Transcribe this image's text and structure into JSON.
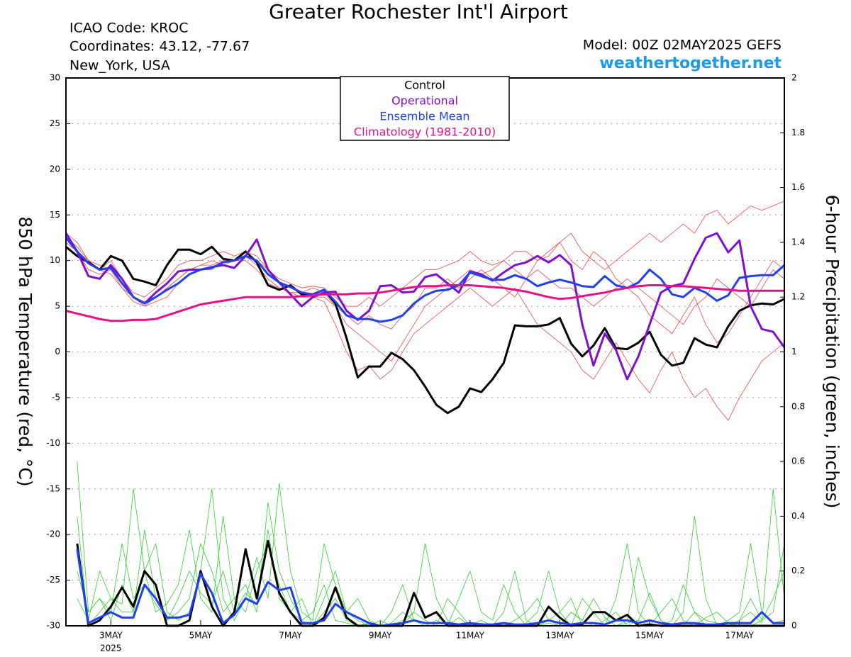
{
  "chart_data": {
    "type": "line",
    "title": "Greater Rochester Int'l Airport",
    "icao": "ICAO Code: KROC",
    "coordinates": "Coordinates: 43.12, -77.67",
    "location": "New_York, USA",
    "model": "Model: 00Z 02MAY2025 GEFS",
    "site": "weathertogether.net",
    "y_label": "850 hPa Temperature (red, °C)",
    "y2_label": "6-hour Precipitation (green, inches)",
    "year": "2025",
    "grid": true,
    "legend": "top",
    "xlim": [
      0,
      384
    ],
    "xticks": [
      {
        "value": 24,
        "label": "3MAY"
      },
      {
        "value": 72,
        "label": "5MAY"
      },
      {
        "value": 120,
        "label": "7MAY"
      },
      {
        "value": 168,
        "label": "9MAY"
      },
      {
        "value": 216,
        "label": "11MAY"
      },
      {
        "value": 264,
        "label": "13MAY"
      },
      {
        "value": 312,
        "label": "15MAY"
      },
      {
        "value": 360,
        "label": "17MAY"
      }
    ],
    "ylim": [
      -30,
      30
    ],
    "yticks": [
      -30,
      -25,
      -20,
      -15,
      -10,
      -5,
      0,
      5,
      10,
      15,
      20,
      25,
      30
    ],
    "y2lim": [
      0,
      2
    ],
    "y2ticks": [
      0,
      0.2,
      0.4,
      0.6,
      0.8,
      1,
      1.2,
      1.4,
      1.6,
      1.8,
      2
    ],
    "x": [
      0,
      6,
      12,
      18,
      24,
      30,
      36,
      42,
      48,
      54,
      60,
      66,
      72,
      78,
      84,
      90,
      96,
      102,
      108,
      114,
      120,
      126,
      132,
      138,
      144,
      150,
      156,
      162,
      168,
      174,
      180,
      186,
      192,
      198,
      204,
      210,
      216,
      222,
      228,
      234,
      240,
      246,
      252,
      258,
      264,
      270,
      276,
      282,
      288,
      294,
      300,
      306,
      312,
      318,
      324,
      330,
      336,
      342,
      348,
      354,
      360,
      366,
      372,
      378,
      384
    ],
    "member_color": "#f04848",
    "precip_member_color": "#30d030",
    "temperature_members": [
      [
        12.5,
        11.5,
        10,
        9,
        10,
        8,
        6.5,
        6,
        7,
        8,
        9.5,
        10,
        10,
        10.5,
        11,
        10.5,
        11,
        10,
        9,
        8,
        7.5,
        7,
        7.2,
        7,
        6,
        5,
        5,
        6,
        5,
        6,
        7,
        8,
        9,
        9,
        9.5,
        10,
        11,
        10,
        9.5,
        10,
        11,
        11,
        10,
        10.5,
        12,
        13,
        11,
        10,
        9,
        10,
        11,
        12,
        13,
        12,
        13,
        14,
        13,
        15,
        15.5,
        14,
        15,
        16,
        15.5,
        16,
        16.5
      ],
      [
        12,
        11,
        9,
        8.5,
        9,
        7,
        5.5,
        5,
        5.5,
        6,
        7.5,
        8.5,
        9,
        9,
        10,
        10,
        10.5,
        9.5,
        8,
        7,
        6.5,
        6,
        6,
        5.5,
        3,
        0,
        -2,
        -1.5,
        -3,
        -2,
        0,
        2,
        3,
        4,
        5,
        6,
        7,
        6,
        5,
        6,
        7,
        5,
        3,
        2,
        1,
        0,
        -2,
        -3,
        -1,
        1,
        -1,
        -3,
        -4.5,
        -2,
        0,
        -3,
        -5,
        -4,
        -6,
        -7.5,
        -5,
        -3,
        -1,
        0,
        1
      ],
      [
        13,
        12,
        10,
        9.5,
        9,
        8,
        6,
        5,
        6,
        7,
        8,
        9,
        9.5,
        9.5,
        10,
        10,
        10,
        9,
        7.5,
        7,
        6.5,
        6.5,
        7,
        6.5,
        5,
        4,
        3,
        4,
        3,
        2.5,
        4,
        5,
        7,
        7,
        8,
        7,
        8,
        9,
        8,
        7,
        6,
        8,
        9,
        8,
        7,
        7,
        6,
        5,
        6,
        7,
        8,
        7,
        6,
        5,
        4,
        3,
        5,
        6,
        8,
        7,
        6,
        5,
        7,
        9,
        8
      ],
      [
        12,
        11,
        10,
        9,
        8.5,
        7,
        6,
        5.5,
        6,
        7,
        8,
        9,
        9.5,
        10,
        9.5,
        10,
        11,
        10.5,
        9,
        7.5,
        7,
        6.5,
        6,
        6,
        5,
        3,
        2,
        1,
        0,
        -1,
        1,
        3,
        5,
        6,
        7,
        8,
        9,
        8.5,
        9,
        10,
        9,
        8,
        10,
        11,
        12,
        10,
        9,
        11,
        10,
        8,
        7,
        6,
        4,
        3,
        2,
        4,
        6,
        3,
        1,
        2,
        4,
        6,
        8,
        10,
        9
      ]
    ],
    "precip_members": [
      [
        null,
        0.6,
        0.05,
        0.1,
        0.02,
        0.15,
        0.05,
        0.35,
        0.1,
        0.02,
        0.05,
        0.1,
        0.3,
        0.2,
        0.05,
        0.1,
        0.15,
        0.05,
        0.45,
        0.2,
        0.1,
        0.02,
        0,
        0.05,
        0.1,
        0.02,
        0,
        0.01,
        0,
        0,
        0.02,
        0.05,
        0.3,
        0.1,
        0.02,
        0,
        0,
        0.02,
        0,
        0,
        0.02,
        0.05,
        0.1,
        0.02,
        0,
        0.05,
        0.02,
        0,
        0,
        0.1,
        0.3,
        0.05,
        0,
        0,
        0.02,
        0.15,
        0.05,
        0,
        0,
        0.02,
        0.05,
        0.3,
        0.05,
        0.01,
        0.02
      ],
      [
        null,
        0.4,
        0,
        0.05,
        0.1,
        0.08,
        0.5,
        0.2,
        0.05,
        0.08,
        0.15,
        0.35,
        0.1,
        0.05,
        0.4,
        0.1,
        0.05,
        0.2,
        0.3,
        0.15,
        0.05,
        0.1,
        0,
        0.1,
        0.2,
        0.05,
        0.02,
        0,
        0,
        0.05,
        0.15,
        0.02,
        0,
        0,
        0.1,
        0.05,
        0,
        0.02,
        0,
        0,
        0,
        0.01,
        0.05,
        0.2,
        0.05,
        0,
        0.1,
        0.05,
        0,
        0,
        0.02,
        0.25,
        0.1,
        0.02,
        0,
        0.05,
        0.4,
        0.1,
        0,
        0,
        0.02,
        0.05,
        0.01,
        0.5,
        0.1
      ],
      [
        null,
        0.1,
        0.02,
        0.2,
        0.1,
        0.05,
        0.05,
        0.2,
        0.3,
        0.05,
        0.02,
        0.05,
        0.2,
        0.5,
        0.1,
        0.02,
        0.1,
        0.25,
        0.1,
        0.52,
        0.2,
        0.05,
        0.02,
        0.3,
        0.15,
        0.05,
        0.1,
        0.02,
        0,
        0.01,
        0.05,
        0.02,
        0,
        0.02,
        0,
        0.1,
        0.2,
        0.05,
        0.02,
        0.15,
        0.05,
        0,
        0,
        0.02,
        0.05,
        0.1,
        0,
        0,
        0.02,
        0.05,
        0,
        0.02,
        0,
        0.05,
        0.1,
        0.02,
        0,
        0.03,
        0.05,
        0.01,
        0,
        0,
        0.02,
        0.1,
        0.2
      ],
      [
        null,
        0.2,
        0.05,
        0.1,
        0.05,
        0.3,
        0.1,
        0.15,
        0.08,
        0.02,
        0.1,
        0.2,
        0.12,
        0.08,
        0.2,
        0.05,
        0.12,
        0.08,
        0.35,
        0.1,
        0.05,
        0.02,
        0.05,
        0.15,
        0.02,
        0.01,
        0,
        0,
        0.02,
        0,
        0,
        0.05,
        0.02,
        0,
        0,
        0.03,
        0,
        0.01,
        0,
        0.05,
        0.2,
        0.02,
        0,
        0.01,
        0,
        0.05,
        0.02,
        0.1,
        0.03,
        0,
        0.01,
        0.02,
        0.12,
        0.02,
        0,
        0,
        0.05,
        0.02,
        0.01,
        0,
        0.02,
        0.1,
        0.02,
        0.05,
        0.3
      ]
    ],
    "series": [
      {
        "name": "Control",
        "color": "#000000",
        "values": [
          11.5,
          10.5,
          9.8,
          9,
          10.5,
          10,
          8,
          7.7,
          7.3,
          9.5,
          11.2,
          11.2,
          10.7,
          11.5,
          10.2,
          10,
          11,
          9.8,
          7.3,
          6.8,
          7.3,
          6.3,
          6.3,
          6.8,
          5.3,
          1.5,
          -2.8,
          -1.6,
          -1.6,
          -0.1,
          -0.8,
          -2,
          -3.8,
          -5.8,
          -6.7,
          -6,
          -4,
          -4.4,
          -3,
          -1.2,
          2.9,
          2.8,
          2.8,
          3,
          3.7,
          0.9,
          -0.5,
          0.7,
          2.6,
          0.4,
          0.3,
          1,
          2.2,
          -0.3,
          -1.5,
          -1.2,
          1.5,
          0.8,
          0.5,
          2.8,
          4.5,
          5.1,
          5.3,
          5.2,
          5.8
        ]
      },
      {
        "name": "Operational",
        "color": "#8010d0",
        "values": [
          13,
          11,
          8.3,
          8,
          9.5,
          8,
          6,
          5.3,
          6.5,
          7.5,
          8.8,
          9,
          9,
          9.3,
          9.5,
          9.2,
          10.5,
          12.3,
          9,
          7.6,
          6.3,
          5,
          6,
          6.5,
          6.6,
          4.5,
          3.5,
          4.5,
          7.2,
          7.3,
          6.5,
          6.6,
          8.2,
          8.5,
          7.5,
          6.5,
          8.8,
          8.5,
          7.8,
          8.7,
          9.5,
          9.8,
          10.5,
          9.8,
          10.6,
          9.5,
          3,
          -1.5,
          2,
          0.2,
          -3,
          -0.5,
          3,
          6.5,
          7.2,
          7.5,
          10.2,
          12.5,
          13,
          10.9,
          12.2,
          5,
          2.5,
          2.2,
          0.5
        ]
      },
      {
        "name": "Ensemble Mean",
        "color": "#2040f0",
        "values": [
          12.5,
          11,
          9.7,
          9,
          9.2,
          7.5,
          6,
          5.3,
          6,
          6.8,
          7.5,
          8.5,
          9,
          9.2,
          9.8,
          10,
          10.5,
          10,
          8.5,
          7.6,
          7.1,
          6.5,
          6.3,
          6.8,
          5.5,
          4,
          3.6,
          3.6,
          3.3,
          3.5,
          4,
          5.3,
          6.2,
          6.7,
          6.8,
          7.3,
          8.7,
          8.3,
          7.9,
          7.9,
          8.4,
          8,
          7.2,
          7.6,
          7.9,
          7.6,
          7.2,
          7.1,
          8.3,
          7.3,
          7,
          7.6,
          9,
          8,
          6.3,
          6,
          7,
          6.5,
          5.6,
          6.2,
          8.1,
          8.3,
          8.4,
          8.4,
          9.5
        ]
      },
      {
        "name": "Climatology (1981-2010)",
        "color": "#e8108a",
        "values": [
          4.5,
          4.2,
          3.9,
          3.6,
          3.4,
          3.4,
          3.5,
          3.5,
          3.6,
          4,
          4.4,
          4.8,
          5.2,
          5.4,
          5.6,
          5.8,
          6,
          6,
          6,
          6,
          6,
          6.1,
          6.2,
          6.3,
          6.3,
          6.3,
          6.4,
          6.4,
          6.5,
          6.7,
          6.9,
          7.1,
          7.2,
          7.2,
          7.3,
          7.3,
          7.3,
          7.2,
          7.1,
          7,
          6.8,
          6.6,
          6.3,
          6,
          5.8,
          5.9,
          6.1,
          6.3,
          6.5,
          6.8,
          7,
          7.2,
          7.3,
          7.3,
          7.2,
          7.2,
          7.1,
          7,
          6.9,
          6.8,
          6.7,
          6.7,
          6.7,
          6.7,
          6.7
        ]
      },
      {
        "color": "#000000",
        "axis": "y2",
        "values": [
          null,
          0.3,
          0,
          0.02,
          0.07,
          0.14,
          0.07,
          0.2,
          0.15,
          0,
          0,
          0.02,
          0.2,
          0.07,
          0,
          0.05,
          0.28,
          0.1,
          0.31,
          0.12,
          0.05,
          0,
          0,
          0.03,
          0.14,
          0.03,
          0,
          0,
          0,
          0,
          0,
          0.12,
          0.03,
          0.05,
          0,
          0,
          0,
          0,
          0,
          0,
          0,
          0,
          0,
          0.07,
          0.03,
          0,
          0.005,
          0.05,
          0.05,
          0.02,
          0.04,
          0,
          0.005,
          0,
          0,
          0,
          0,
          0,
          0,
          0,
          0,
          0,
          0,
          0,
          0
        ]
      },
      {
        "color": "#2040f0",
        "axis": "y2",
        "values": [
          null,
          0.28,
          0.01,
          0.03,
          0.05,
          0.03,
          0.03,
          0.15,
          0.1,
          0.03,
          0.03,
          0.04,
          0.19,
          0.12,
          0.01,
          0.04,
          0.1,
          0.08,
          0.16,
          0.13,
          0.14,
          0.01,
          0.01,
          0.02,
          0.08,
          0.05,
          0.03,
          0.01,
          0,
          0.005,
          0.01,
          0.02,
          0.01,
          0.01,
          0.01,
          0.005,
          0.01,
          0.005,
          0.005,
          0.01,
          0.005,
          0.005,
          0.01,
          0.02,
          0.01,
          0.005,
          0.01,
          0.01,
          0.005,
          0.02,
          0.02,
          0.01,
          0.02,
          0.01,
          0.005,
          0.01,
          0.01,
          0.005,
          0.005,
          0.01,
          0.01,
          0.01,
          0.05,
          0.01,
          0.01
        ]
      }
    ]
  }
}
